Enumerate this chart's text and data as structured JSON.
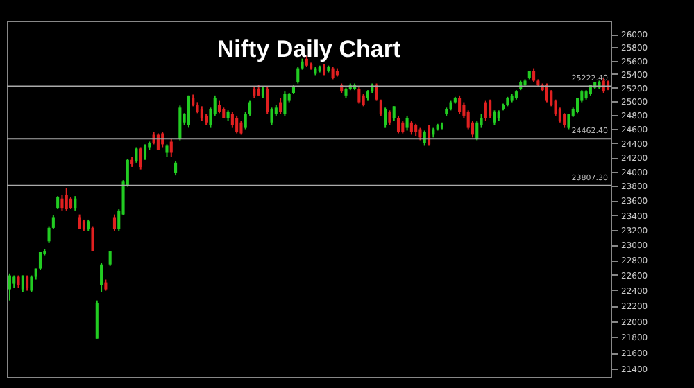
{
  "chart_data": {
    "type": "candlestick",
    "title": "Nifty Daily Chart",
    "categories": [
      null,
      null,
      null,
      null,
      null,
      null,
      null,
      null,
      null,
      null,
      null,
      null,
      null,
      null,
      null,
      null,
      null,
      null,
      null,
      null,
      null,
      null,
      null,
      null,
      null,
      null,
      null,
      null,
      null,
      null,
      null,
      null,
      null,
      null,
      null,
      null,
      null,
      null,
      null,
      null,
      null,
      null,
      null,
      null,
      null,
      null,
      null,
      null,
      null,
      null,
      null,
      null,
      null,
      null,
      null,
      null,
      null,
      null,
      null,
      null,
      null,
      null,
      null,
      null,
      null,
      null,
      null,
      null,
      null,
      null,
      null,
      null,
      null,
      null,
      null,
      null,
      null,
      null,
      null,
      null,
      null,
      null,
      null,
      null,
      null,
      null,
      null,
      null,
      null,
      null,
      null,
      null,
      null,
      null,
      null,
      null,
      null,
      null,
      null,
      null,
      null,
      null,
      null,
      null,
      null,
      null,
      null,
      null,
      null,
      null,
      null,
      null,
      null,
      null,
      null,
      null,
      null,
      null,
      null,
      null,
      null,
      null,
      null,
      null,
      null,
      null,
      null,
      null,
      null,
      null,
      null,
      null,
      null,
      null,
      null,
      null,
      null,
      null
    ],
    "ohlc": [
      [
        22413,
        22620,
        22268,
        22594
      ],
      [
        22485,
        22594,
        22431,
        22576
      ],
      [
        22576,
        22594,
        22431,
        22467
      ],
      [
        22413,
        22594,
        22377,
        22594
      ],
      [
        22576,
        22594,
        22395,
        22431
      ],
      [
        22395,
        22594,
        22377,
        22576
      ],
      [
        22576,
        22685,
        22540,
        22685
      ],
      [
        22685,
        22902,
        22666,
        22902
      ],
      [
        22884,
        22940,
        22860,
        22920
      ],
      [
        23047,
        23250,
        23030,
        23228
      ],
      [
        23228,
        23400,
        23210,
        23373
      ],
      [
        23499,
        23660,
        23481,
        23644
      ],
      [
        23626,
        23680,
        23463,
        23499
      ],
      [
        23680,
        23771,
        23463,
        23481
      ],
      [
        23626,
        23650,
        23481,
        23499
      ],
      [
        23499,
        23660,
        23463,
        23626
      ],
      [
        23373,
        23409,
        23210,
        23210
      ],
      [
        23318,
        23340,
        23190,
        23210
      ],
      [
        23210,
        23340,
        23190,
        23318
      ],
      [
        23228,
        23250,
        22920,
        22920
      ],
      [
        21780,
        22268,
        21780,
        22232
      ],
      [
        22467,
        22760,
        22380,
        22739
      ],
      [
        22503,
        22540,
        22395,
        22413
      ],
      [
        22739,
        22920,
        22720,
        22920
      ],
      [
        23373,
        23409,
        23190,
        23210
      ],
      [
        23210,
        23480,
        23190,
        23463
      ],
      [
        23409,
        23880,
        23400,
        23869
      ],
      [
        23807,
        24180,
        23790,
        24165
      ],
      [
        24165,
        24205,
        24066,
        24106
      ],
      [
        24145,
        24343,
        24125,
        24323
      ],
      [
        24323,
        24343,
        24030,
        24066
      ],
      [
        24205,
        24383,
        24165,
        24363
      ],
      [
        24343,
        24422,
        24304,
        24403
      ],
      [
        24521,
        24560,
        24383,
        24403
      ],
      [
        24521,
        24540,
        24304,
        24304
      ],
      [
        24540,
        24560,
        24343,
        24383
      ],
      [
        24264,
        24383,
        24205,
        24363
      ],
      [
        24422,
        24462,
        24205,
        24264
      ],
      [
        23987,
        24145,
        23948,
        24125
      ],
      [
        24462,
        24940,
        24440,
        24910
      ],
      [
        24696,
        24830,
        24660,
        24813
      ],
      [
        24657,
        25086,
        24620,
        25086
      ],
      [
        25047,
        25100,
        24930,
        24949
      ],
      [
        24949,
        24990,
        24830,
        24852
      ],
      [
        24891,
        24930,
        24716,
        24755
      ],
      [
        24794,
        24813,
        24657,
        24696
      ],
      [
        24657,
        24910,
        24618,
        24891
      ],
      [
        24813,
        25086,
        24794,
        25047
      ],
      [
        24949,
        25008,
        24830,
        24852
      ],
      [
        24891,
        24910,
        24755,
        24755
      ],
      [
        24755,
        24870,
        24716,
        24852
      ],
      [
        24813,
        24852,
        24618,
        24657
      ],
      [
        24755,
        24794,
        24540,
        24560
      ],
      [
        24696,
        24716,
        24521,
        24540
      ],
      [
        24618,
        24852,
        24599,
        24813
      ],
      [
        24813,
        25008,
        24794,
        24988
      ],
      [
        25183,
        25222,
        25047,
        25086
      ],
      [
        25183,
        25242,
        25086,
        25086
      ],
      [
        25086,
        25222,
        25047,
        25183
      ],
      [
        25183,
        25222,
        24813,
        24852
      ],
      [
        24696,
        24910,
        24657,
        24891
      ],
      [
        24813,
        24949,
        24794,
        24910
      ],
      [
        24988,
        25047,
        24813,
        24852
      ],
      [
        24813,
        25144,
        24794,
        25105
      ],
      [
        25008,
        25125,
        24988,
        25105
      ],
      [
        25125,
        25242,
        25105,
        25222
      ],
      [
        25283,
        25506,
        25262,
        25486
      ],
      [
        25486,
        25630,
        25465,
        25587
      ],
      [
        25628,
        25670,
        25506,
        25526
      ],
      [
        25547,
        25570,
        25465,
        25486
      ],
      [
        25405,
        25506,
        25385,
        25486
      ],
      [
        25445,
        25526,
        25425,
        25506
      ],
      [
        25506,
        25547,
        25385,
        25405
      ],
      [
        25445,
        25526,
        25425,
        25506
      ],
      [
        25486,
        25506,
        25324,
        25344
      ],
      [
        25445,
        25486,
        25364,
        25385
      ],
      [
        25242,
        25262,
        25125,
        25144
      ],
      [
        25086,
        25200,
        25047,
        25183
      ],
      [
        25183,
        25262,
        25164,
        25242
      ],
      [
        25183,
        25262,
        25164,
        25242
      ],
      [
        25183,
        25222,
        24968,
        24988
      ],
      [
        25086,
        25105,
        24930,
        24949
      ],
      [
        25047,
        25164,
        25008,
        25144
      ],
      [
        25144,
        25262,
        25125,
        25242
      ],
      [
        25242,
        25262,
        25008,
        25027
      ],
      [
        25008,
        25027,
        24794,
        24813
      ],
      [
        24657,
        24910,
        24618,
        24891
      ],
      [
        24852,
        24870,
        24657,
        24696
      ],
      [
        24755,
        24930,
        24716,
        24930
      ],
      [
        24755,
        24794,
        24540,
        24560
      ],
      [
        24696,
        24716,
        24540,
        24560
      ],
      [
        24618,
        24794,
        24580,
        24755
      ],
      [
        24696,
        24716,
        24521,
        24560
      ],
      [
        24657,
        24676,
        24501,
        24560
      ],
      [
        24599,
        24618,
        24442,
        24482
      ],
      [
        24403,
        24580,
        24363,
        24560
      ],
      [
        24618,
        24657,
        24363,
        24383
      ],
      [
        24521,
        24618,
        24482,
        24599
      ],
      [
        24599,
        24676,
        24580,
        24657
      ],
      [
        24618,
        24696,
        24599,
        24657
      ],
      [
        24813,
        24910,
        24794,
        24891
      ],
      [
        24891,
        25008,
        24870,
        24988
      ],
      [
        24988,
        25066,
        24968,
        25047
      ],
      [
        25047,
        25086,
        24813,
        24852
      ],
      [
        24949,
        24988,
        24755,
        24794
      ],
      [
        24852,
        24870,
        24599,
        24618
      ],
      [
        24696,
        24716,
        24482,
        24521
      ],
      [
        24462,
        24716,
        24442,
        24696
      ],
      [
        24657,
        24813,
        24618,
        24755
      ],
      [
        24988,
        25008,
        24716,
        24755
      ],
      [
        25008,
        25027,
        24755,
        24794
      ],
      [
        24696,
        24870,
        24657,
        24852
      ],
      [
        24755,
        24870,
        24716,
        24852
      ],
      [
        24891,
        24968,
        24870,
        24949
      ],
      [
        24949,
        25066,
        24930,
        25047
      ],
      [
        25008,
        25105,
        24988,
        25086
      ],
      [
        25047,
        25164,
        25027,
        25144
      ],
      [
        25183,
        25303,
        25164,
        25283
      ],
      [
        25242,
        25324,
        25222,
        25303
      ],
      [
        25344,
        25445,
        25324,
        25445
      ],
      [
        25445,
        25486,
        25283,
        25303
      ],
      [
        25303,
        25324,
        25222,
        25242
      ],
      [
        25242,
        25262,
        25144,
        25164
      ],
      [
        25242,
        25262,
        24988,
        25008
      ],
      [
        25144,
        25164,
        24930,
        24949
      ],
      [
        25008,
        25027,
        24794,
        24813
      ],
      [
        24891,
        24910,
        24696,
        24716
      ],
      [
        24813,
        24830,
        24618,
        24657
      ],
      [
        24618,
        24813,
        24599,
        24813
      ],
      [
        24794,
        24910,
        24775,
        24891
      ],
      [
        24852,
        25047,
        24830,
        25047
      ],
      [
        25008,
        25164,
        24988,
        25144
      ],
      [
        25047,
        25164,
        25027,
        25144
      ],
      [
        25105,
        25242,
        25086,
        25242
      ],
      [
        25200,
        25283,
        25183,
        25283
      ],
      [
        25200,
        25303,
        25183,
        25283
      ],
      [
        25303,
        25344,
        25125,
        25144
      ],
      [
        25283,
        25303,
        25164,
        25183
      ]
    ],
    "colors": [
      "#22cc22",
      "#22cc22",
      "#e02020",
      "#22cc22",
      "#e02020",
      "#22cc22",
      "#22cc22",
      "#22cc22",
      "#22cc22",
      "#22cc22",
      "#22cc22",
      "#22cc22",
      "#e02020",
      "#e02020",
      "#e02020",
      "#22cc22",
      "#e02020",
      "#e02020",
      "#22cc22",
      "#e02020",
      "#22cc22",
      "#22cc22",
      "#e02020",
      "#22cc22",
      "#e02020",
      "#22cc22",
      "#22cc22",
      "#22cc22",
      "#e02020",
      "#22cc22",
      "#e02020",
      "#22cc22",
      "#22cc22",
      "#e02020",
      "#e02020",
      "#e02020",
      "#22cc22",
      "#e02020",
      "#22cc22",
      "#22cc22",
      "#22cc22",
      "#22cc22",
      "#e02020",
      "#e02020",
      "#e02020",
      "#e02020",
      "#22cc22",
      "#22cc22",
      "#e02020",
      "#e02020",
      "#22cc22",
      "#e02020",
      "#e02020",
      "#e02020",
      "#22cc22",
      "#22cc22",
      "#e02020",
      "#e02020",
      "#22cc22",
      "#e02020",
      "#22cc22",
      "#22cc22",
      "#e02020",
      "#22cc22",
      "#22cc22",
      "#22cc22",
      "#22cc22",
      "#22cc22",
      "#e02020",
      "#e02020",
      "#22cc22",
      "#22cc22",
      "#e02020",
      "#22cc22",
      "#e02020",
      "#e02020",
      "#e02020",
      "#22cc22",
      "#22cc22",
      "#22cc22",
      "#e02020",
      "#e02020",
      "#22cc22",
      "#22cc22",
      "#e02020",
      "#e02020",
      "#22cc22",
      "#e02020",
      "#22cc22",
      "#e02020",
      "#e02020",
      "#22cc22",
      "#e02020",
      "#e02020",
      "#e02020",
      "#22cc22",
      "#e02020",
      "#22cc22",
      "#22cc22",
      "#22cc22",
      "#22cc22",
      "#22cc22",
      "#22cc22",
      "#e02020",
      "#e02020",
      "#e02020",
      "#e02020",
      "#22cc22",
      "#22cc22",
      "#e02020",
      "#e02020",
      "#22cc22",
      "#22cc22",
      "#22cc22",
      "#22cc22",
      "#22cc22",
      "#22cc22",
      "#22cc22",
      "#22cc22",
      "#22cc22",
      "#e02020",
      "#e02020",
      "#e02020",
      "#e02020",
      "#e02020",
      "#e02020",
      "#e02020",
      "#e02020",
      "#22cc22",
      "#22cc22",
      "#22cc22",
      "#22cc22",
      "#22cc22",
      "#22cc22",
      "#22cc22",
      "#22cc22",
      "#e02020",
      "#e02020"
    ],
    "log": true,
    "ylim": [
      21300,
      26200
    ],
    "yticks": [
      21400,
      21600,
      21800,
      22000,
      22200,
      22400,
      22600,
      22800,
      23000,
      23200,
      23400,
      23600,
      23800,
      24000,
      24200,
      24400,
      24600,
      24800,
      25000,
      25200,
      25400,
      25600,
      25800,
      26000
    ],
    "ref_lines": [
      {
        "axis": "y",
        "value": 25222.4,
        "label": "25222.40",
        "color": "#aaaaaa"
      },
      {
        "axis": "y",
        "value": 24462.4,
        "label": "24462.40",
        "color": "#aaaaaa"
      },
      {
        "axis": "y",
        "value": 23807.3,
        "label": "23807.30",
        "color": "#aaaaaa"
      }
    ],
    "grid": false
  }
}
